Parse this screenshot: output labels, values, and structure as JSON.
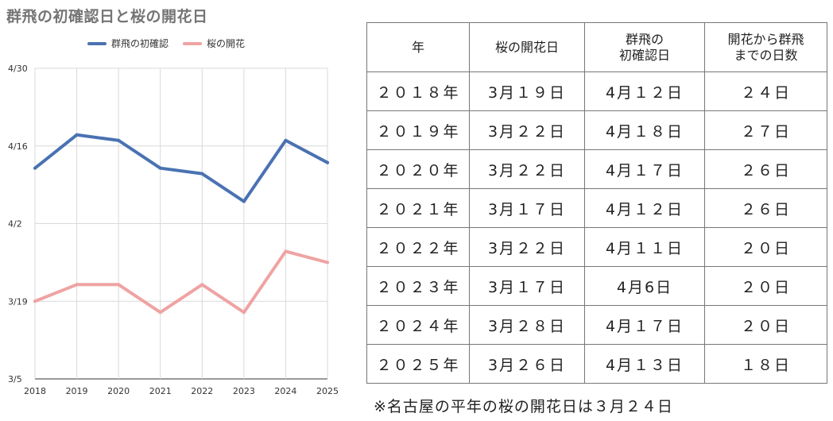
{
  "chart": {
    "title": "群飛の初確認日と桜の開花日"
  },
  "chart_data": {
    "type": "line",
    "title": "群飛の初確認日と桜の開花日",
    "x": [
      "2018",
      "2019",
      "2020",
      "2021",
      "2022",
      "2023",
      "2024",
      "2025"
    ],
    "y_ticks": [
      "3/5",
      "3/19",
      "4/2",
      "4/16",
      "4/30"
    ],
    "y_tick_values": [
      0,
      14,
      28,
      42,
      56
    ],
    "ylim": [
      0,
      56
    ],
    "y_value_note": "days since 3/5",
    "grid": true,
    "legend_position": "top",
    "series": [
      {
        "name": "群飛の初確認",
        "color": "#4a72b2",
        "values": [
          38,
          44,
          43,
          38,
          37,
          32,
          43,
          39
        ]
      },
      {
        "name": "桜の開花",
        "color": "#efa3a3",
        "values": [
          14,
          17,
          17,
          12,
          17,
          12,
          23,
          21
        ]
      }
    ]
  },
  "table": {
    "headers": [
      "年",
      "桜の開花日",
      "群飛の\n初確認日",
      "開花から群飛\nまでの日数"
    ],
    "rows": [
      [
        "２０１８年",
        "3月１９日",
        "4月１２日",
        "２４日"
      ],
      [
        "２０１９年",
        "3月２２日",
        "4月１８日",
        "２７日"
      ],
      [
        "２０２０年",
        "3月２２日",
        "4月１７日",
        "２６日"
      ],
      [
        "２０２１年",
        "3月１７日",
        "4月１２日",
        "２６日"
      ],
      [
        "２０２２年",
        "3月２２日",
        "4月１１日",
        "２０日"
      ],
      [
        "２０２３年",
        "3月１７日",
        "4月6日",
        "２０日"
      ],
      [
        "２０２４年",
        "3月２８日",
        "4月１７日",
        "２０日"
      ],
      [
        "２０２５年",
        "3月２６日",
        "4月１３日",
        "１８日"
      ]
    ]
  },
  "note": "※名古屋の平年の桜の開花日は３月２４日"
}
